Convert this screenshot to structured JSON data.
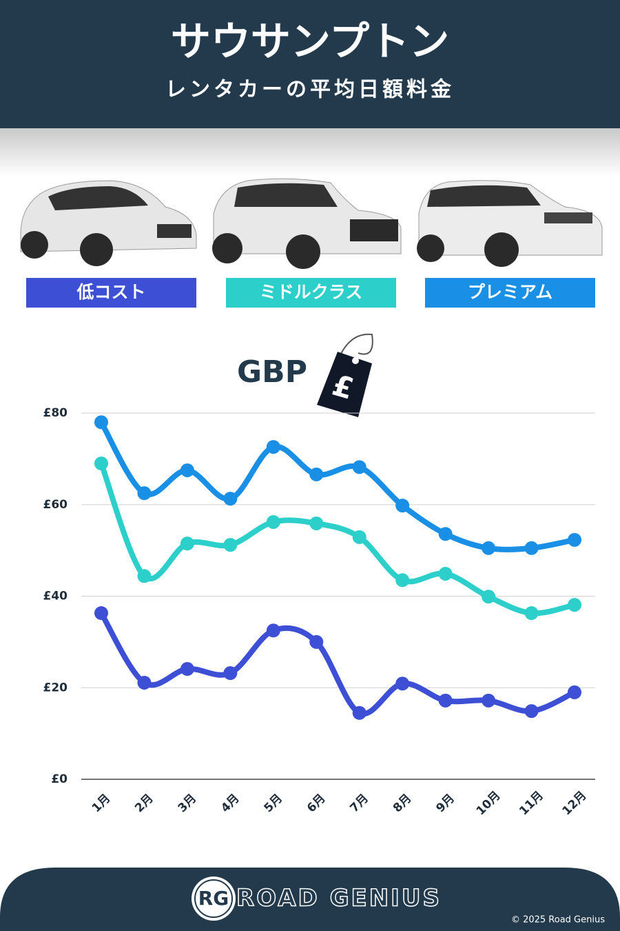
{
  "chart_data": {
    "type": "line",
    "title": "サウサンプトン",
    "subtitle": "レンタカーの平均日額料金",
    "y_label": "GBP",
    "tag_symbol": "£",
    "categories": [
      "1月",
      "2月",
      "3月",
      "4月",
      "5月",
      "6月",
      "7月",
      "8月",
      "9月",
      "10月",
      "11月",
      "12月"
    ],
    "series": [
      {
        "name": "低コスト",
        "color": "#3d4fd4",
        "values": [
          36.3,
          21.1,
          24.1,
          23.2,
          32.5,
          30.0,
          14.5,
          20.9,
          17.2,
          17.2,
          14.9,
          19.0
        ]
      },
      {
        "name": "ミドルクラス",
        "color": "#2ccfc9",
        "values": [
          69.0,
          44.4,
          51.5,
          51.2,
          56.2,
          55.9,
          52.9,
          43.5,
          44.9,
          39.9,
          36.3,
          38.1
        ]
      },
      {
        "name": "プレミアム",
        "color": "#1a8fe6",
        "values": [
          78.0,
          62.5,
          67.5,
          61.3,
          72.6,
          66.6,
          68.2,
          59.8,
          53.6,
          50.5,
          50.5,
          52.3
        ]
      }
    ],
    "ylim": [
      0,
      80
    ],
    "yticks": [
      {
        "value": 0,
        "label": "£0"
      },
      {
        "value": 20,
        "label": "£20"
      },
      {
        "value": 40,
        "label": "£40"
      },
      {
        "value": 60,
        "label": "£60"
      },
      {
        "value": 80,
        "label": "£80"
      }
    ],
    "grid": true
  },
  "footer": {
    "logo": "RG",
    "brand": "ROAD GENIUS",
    "copyright": "© 2025 Road Genius"
  }
}
